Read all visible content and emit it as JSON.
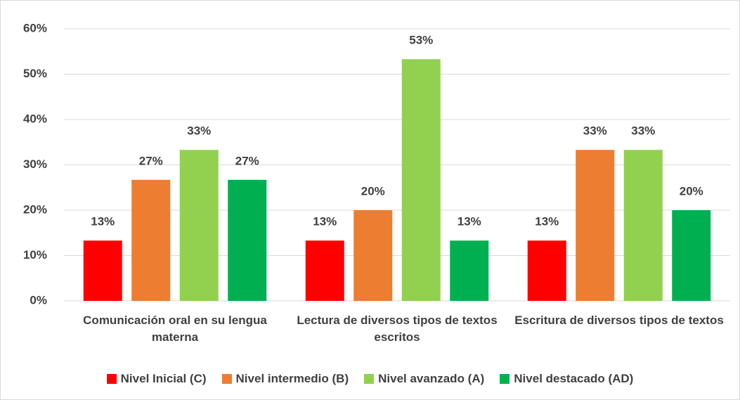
{
  "chart_data": {
    "type": "bar",
    "categories": [
      "Comunicación oral en su lengua materna",
      "Lectura de diversos tipos de textos escritos",
      "Escritura de diversos tipos de textos"
    ],
    "series": [
      {
        "name": "Nivel Inicial (C)",
        "color": "#ff0000",
        "values": [
          13.3,
          13.3,
          13.3
        ],
        "value_labels": [
          "13%",
          "13%",
          "13%"
        ]
      },
      {
        "name": "Nivel intermedio (B)",
        "color": "#ed7d31",
        "values": [
          26.7,
          20,
          33.3
        ],
        "value_labels": [
          "27%",
          "20%",
          "33%"
        ]
      },
      {
        "name": "Nivel avanzado (A)",
        "color": "#92d050",
        "values": [
          33.3,
          53.3,
          33.3
        ],
        "value_labels": [
          "33%",
          "53%",
          "33%"
        ]
      },
      {
        "name": "Nivel destacado (AD)",
        "color": "#00b050",
        "values": [
          26.7,
          13.3,
          20
        ],
        "value_labels": [
          "27%",
          "13%",
          "20%"
        ]
      }
    ],
    "ylim": [
      0,
      60
    ],
    "yticks": [
      {
        "value": 0,
        "label": "0%"
      },
      {
        "value": 10,
        "label": "10%"
      },
      {
        "value": 20,
        "label": "20%"
      },
      {
        "value": 30,
        "label": "30%"
      },
      {
        "value": 40,
        "label": "40%"
      },
      {
        "value": 50,
        "label": "50%"
      },
      {
        "value": 60,
        "label": "60%"
      }
    ],
    "grid": true,
    "legend": "bottom"
  }
}
